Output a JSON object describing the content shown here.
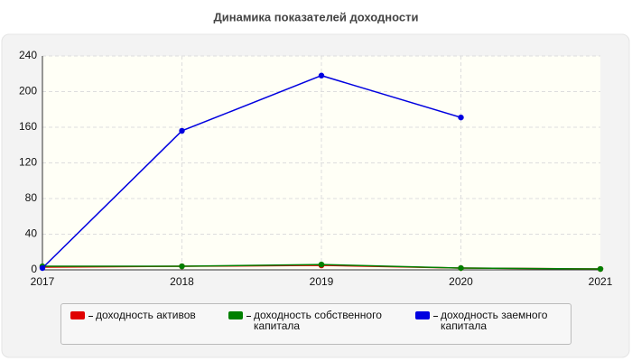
{
  "chart_data": {
    "type": "line",
    "title": "Динамика показателей доходности",
    "categories": [
      "2017",
      "2018",
      "2019",
      "2020",
      "2021"
    ],
    "series": [
      {
        "name": "доходность активов",
        "color": "#e00000",
        "values": [
          3,
          4,
          5,
          2,
          1
        ]
      },
      {
        "name": "доходность собственного капитала",
        "color": "#008000",
        "values": [
          4,
          4,
          6,
          2,
          1
        ]
      },
      {
        "name": "доходность заемного капитала",
        "color": "#0000e0",
        "values": [
          2,
          156,
          218,
          171,
          null
        ]
      }
    ],
    "ylim": [
      0,
      240
    ],
    "yticks": [
      0,
      40,
      80,
      120,
      160,
      200,
      240
    ],
    "grid": true
  }
}
